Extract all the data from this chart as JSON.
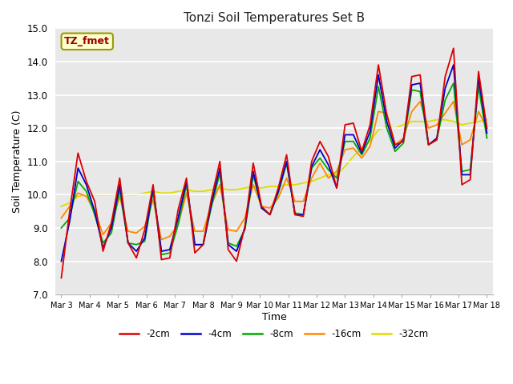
{
  "title": "Tonzi Soil Temperatures Set B",
  "xlabel": "Time",
  "ylabel": "Soil Temperature (C)",
  "ylim": [
    7.0,
    15.0
  ],
  "yticks": [
    7.0,
    8.0,
    9.0,
    10.0,
    11.0,
    12.0,
    13.0,
    14.0,
    15.0
  ],
  "fig_bg": "#ffffff",
  "plot_bg": "#e8e8e8",
  "annotation_label": "TZ_fmet",
  "annotation_color": "#990000",
  "annotation_bg": "#ffffcc",
  "annotation_edge": "#999900",
  "series_colors": {
    "-2cm": "#dd0000",
    "-4cm": "#0000cc",
    "-8cm": "#00aa00",
    "-16cm": "#ff8800",
    "-32cm": "#dddd00"
  },
  "x_tick_labels": [
    "Mar 3",
    "Mar 4",
    "Mar 5",
    "Mar 6",
    "Mar 7",
    "Mar 8",
    "Mar 9",
    "Mar 10",
    "Mar 11",
    "Mar 12",
    "Mar 13",
    "Mar 14",
    "Mar 15",
    "Mar 16",
    "Mar 17",
    "Mar 18"
  ],
  "data_2cm": [
    7.5,
    9.5,
    11.25,
    10.4,
    9.8,
    8.3,
    9.15,
    10.5,
    8.55,
    8.1,
    8.95,
    10.3,
    8.05,
    8.1,
    9.55,
    10.5,
    8.25,
    8.5,
    9.9,
    11.0,
    8.35,
    8.0,
    9.05,
    10.95,
    9.65,
    9.4,
    10.2,
    11.2,
    9.4,
    9.35,
    11.0,
    11.6,
    11.15,
    10.2,
    12.1,
    12.15,
    11.3,
    12.1,
    13.9,
    12.4,
    11.5,
    11.6,
    13.55,
    13.6,
    11.5,
    11.65,
    13.55,
    14.4,
    10.3,
    10.45,
    13.7,
    12.0
  ],
  "data_4cm": [
    8.0,
    9.2,
    10.8,
    10.3,
    9.5,
    8.4,
    9.0,
    10.3,
    8.55,
    8.3,
    8.7,
    10.2,
    8.3,
    8.35,
    9.3,
    10.4,
    8.5,
    8.5,
    9.75,
    10.8,
    8.5,
    8.3,
    9.0,
    10.7,
    9.6,
    9.4,
    10.1,
    11.0,
    9.4,
    9.4,
    10.85,
    11.35,
    10.9,
    10.2,
    11.8,
    11.8,
    11.25,
    11.9,
    13.6,
    12.2,
    11.4,
    11.65,
    13.3,
    13.35,
    11.5,
    11.7,
    13.2,
    13.9,
    10.6,
    10.6,
    13.5,
    11.85
  ],
  "data_8cm": [
    9.0,
    9.3,
    10.4,
    10.1,
    9.4,
    8.55,
    8.85,
    10.15,
    8.55,
    8.5,
    8.6,
    10.1,
    8.2,
    8.25,
    9.1,
    10.3,
    8.5,
    8.5,
    9.65,
    10.65,
    8.55,
    8.45,
    8.95,
    10.6,
    9.6,
    9.4,
    10.05,
    10.95,
    9.45,
    9.4,
    10.8,
    11.1,
    10.75,
    10.5,
    11.6,
    11.6,
    11.2,
    11.7,
    13.25,
    12.0,
    11.3,
    11.55,
    13.15,
    13.1,
    11.5,
    11.65,
    12.85,
    13.35,
    10.7,
    10.75,
    13.25,
    11.7
  ],
  "data_16cm": [
    9.3,
    9.65,
    10.05,
    9.95,
    9.5,
    8.8,
    9.15,
    9.95,
    8.9,
    8.85,
    9.05,
    9.85,
    8.65,
    8.75,
    9.1,
    10.05,
    8.9,
    8.9,
    9.7,
    10.3,
    8.95,
    8.9,
    9.3,
    10.3,
    9.65,
    9.6,
    9.9,
    10.5,
    9.8,
    9.8,
    10.5,
    10.95,
    10.5,
    10.7,
    11.35,
    11.4,
    11.1,
    11.45,
    12.5,
    12.45,
    11.5,
    11.7,
    12.5,
    12.8,
    12.0,
    12.1,
    12.45,
    12.8,
    11.5,
    11.65,
    12.5,
    12.0
  ],
  "data_32cm": [
    9.65,
    9.75,
    9.95,
    10.0,
    10.0,
    10.0,
    10.0,
    10.05,
    10.0,
    10.0,
    10.05,
    10.1,
    10.05,
    10.05,
    10.1,
    10.15,
    10.1,
    10.1,
    10.15,
    10.2,
    10.15,
    10.15,
    10.2,
    10.25,
    10.2,
    10.25,
    10.25,
    10.3,
    10.3,
    10.35,
    10.4,
    10.5,
    10.6,
    10.6,
    10.85,
    11.15,
    11.4,
    11.6,
    11.95,
    12.05,
    12.0,
    12.1,
    12.2,
    12.2,
    12.2,
    12.25,
    12.25,
    12.2,
    12.1,
    12.15,
    12.2,
    12.25
  ]
}
